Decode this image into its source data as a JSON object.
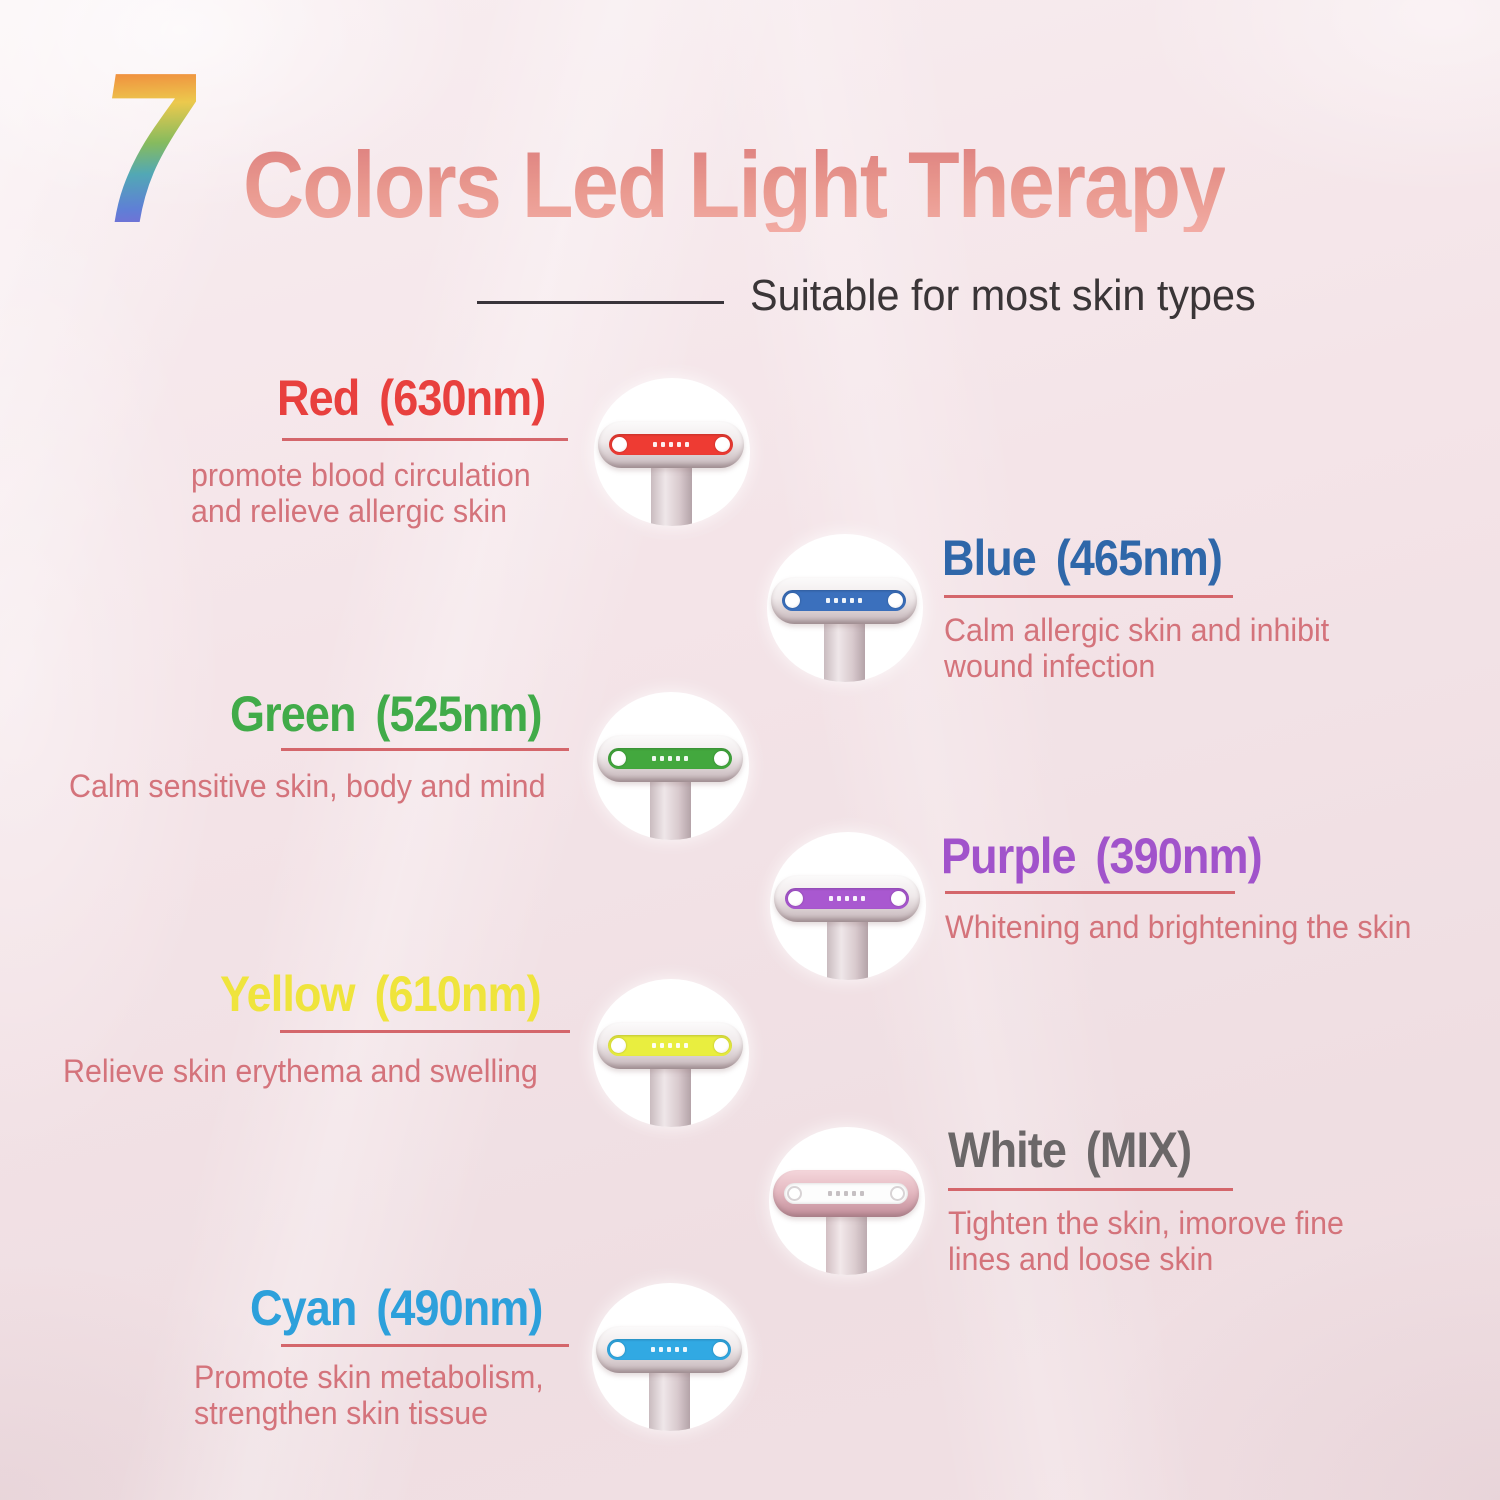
{
  "header": {
    "number": "7",
    "title": "Colors Led Light Therapy",
    "subtitle": "Suitable for most skin types"
  },
  "entries": [
    {
      "name": "Red",
      "wavelength": "(630nm)",
      "heading_color": "#e8403e",
      "led_color": "#ee3b33",
      "description_lines": [
        "promote blood circulation",
        "and relieve allergic skin"
      ]
    },
    {
      "name": "Blue",
      "wavelength": "(465nm)",
      "heading_color": "#2f67a9",
      "led_color": "#3b70bd",
      "description_lines": [
        "Calm allergic skin and inhibit",
        "wound infection"
      ]
    },
    {
      "name": "Green",
      "wavelength": "(525nm)",
      "heading_color": "#41ab49",
      "led_color": "#43a83e",
      "description_lines": [
        "Calm sensitive skin, body and mind"
      ]
    },
    {
      "name": "Purple",
      "wavelength": "(390nm)",
      "heading_color": "#a153cb",
      "led_color": "#a958d0",
      "description_lines": [
        "Whitening and brightening the skin"
      ]
    },
    {
      "name": "Yellow",
      "wavelength": "(610nm)",
      "heading_color": "#efe43c",
      "led_color": "#e9ee3f",
      "description_lines": [
        "Relieve skin erythema and swelling"
      ]
    },
    {
      "name": "White",
      "wavelength": "(MIX)",
      "heading_color": "#6b6768",
      "led_color": "#fdfdfd",
      "description_lines": [
        "Tighten the skin, imorove fine",
        "lines and loose skin"
      ]
    },
    {
      "name": "Cyan",
      "wavelength": "(490nm)",
      "heading_color": "#2da0db",
      "led_color": "#31a9e3",
      "description_lines": [
        "Promote skin metabolism,",
        "strengthen skin tissue"
      ]
    }
  ],
  "theme": {
    "underline_color": "#d4666b",
    "description_color": "#d4737b",
    "subtitle_color": "#3a3537",
    "circle_color": "#ffffff",
    "number_gradient": [
      "#ea5a3c",
      "#f0913f",
      "#ecc94d",
      "#86bb5e",
      "#52a8b5",
      "#5f7fd6",
      "#8a5ed6"
    ],
    "title_gradient": [
      "#dd7f7e",
      "#f2aba4"
    ]
  }
}
